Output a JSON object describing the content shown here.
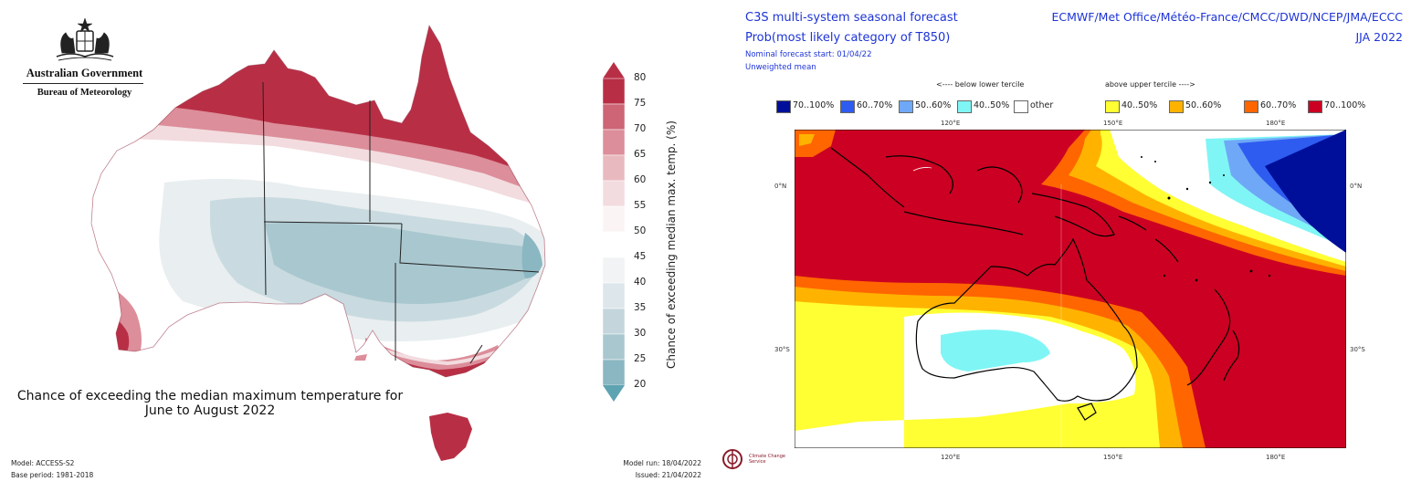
{
  "bom": {
    "agency_title": "Australian Government",
    "agency_sub": "Bureau of Meteorology",
    "map_title_line1": "Chance of exceeding the median maximum temperature for",
    "map_title_line2": "June to August 2022",
    "model": "Model: ACCESS-S2",
    "base_period": "Base period: 1981-2018",
    "model_run": "Model run: 18/04/2022",
    "issued": "Issued: 21/04/2022",
    "colorbar_title": "Chance of exceeding median max. temp. (%)",
    "colorbar_ticks": [
      "80",
      "75",
      "70",
      "65",
      "60",
      "55",
      "50",
      "45",
      "40",
      "35",
      "30",
      "25",
      "20"
    ],
    "colorbar_colors": [
      "#b82f45",
      "#cd6576",
      "#dc8e9a",
      "#e9b9c0",
      "#f2dcdf",
      "#fbf4f5",
      "#ffffff",
      "#f1f3f4",
      "#dde6ea",
      "#c4d6dc",
      "#a9c7cf",
      "#8ab7c1",
      "#5ea3b1"
    ],
    "colors": {
      "high": "#b82f45",
      "mid_high": "#dc8e9a",
      "neutral": "#ffffff",
      "low": "#a9c7cf",
      "lowest": "#5ea3b1"
    }
  },
  "c3s": {
    "title_line1": "C3S multi-system seasonal forecast",
    "title_line2": "Prob(most likely category of T850)",
    "start": "Nominal forecast start: 01/04/22",
    "mean": "Unweighted mean",
    "centres": "ECMWF/Met Office/Météo-France/CMCC/DWD/NCEP/JMA/ECCC",
    "season": "JJA 2022",
    "below_header": "<---- below lower tercile",
    "above_header": "above upper tercile ---->",
    "legend": [
      {
        "label": "70..100%",
        "color": "#000f99"
      },
      {
        "label": "60..70%",
        "color": "#2e5cf0"
      },
      {
        "label": "50..60%",
        "color": "#6fa8f7"
      },
      {
        "label": "40..50%",
        "color": "#80f5f5"
      },
      {
        "label": "other",
        "color": "#ffffff"
      },
      {
        "label": "40..50%",
        "color": "#ffff33"
      },
      {
        "label": "50..60%",
        "color": "#ffb300"
      },
      {
        "label": "60..70%",
        "color": "#ff6600"
      },
      {
        "label": "70..100%",
        "color": "#cc0022"
      }
    ],
    "lon_labels": [
      "120°E",
      "150°E",
      "180°E"
    ],
    "lat_labels": [
      "0°N",
      "30°S"
    ],
    "logo_text": "Climate Change Service"
  }
}
